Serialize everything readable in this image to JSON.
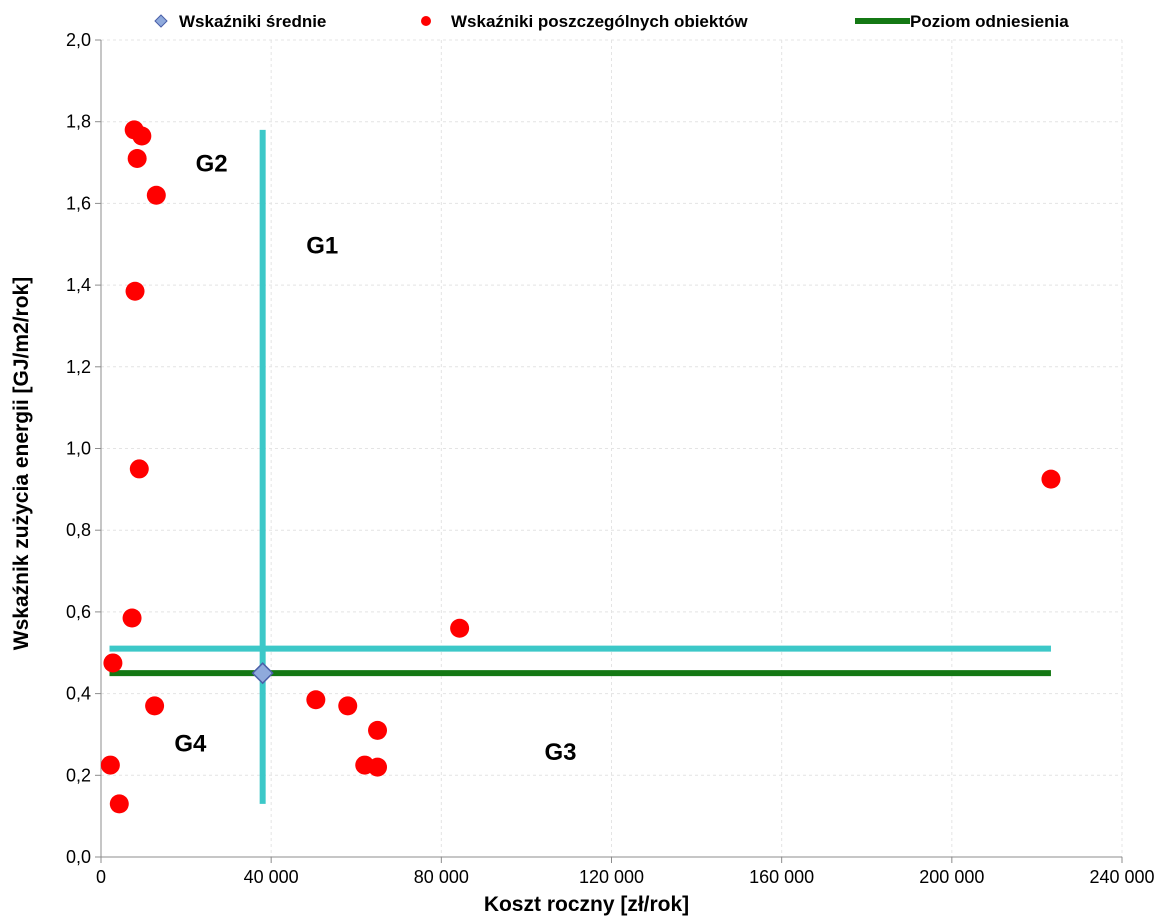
{
  "chart_data": {
    "type": "scatter",
    "xlabel": "Koszt roczny [zł/rok]",
    "ylabel": "Wskaźnik zużycia energii [GJ/m2/rok]",
    "xlim": [
      0,
      240000
    ],
    "ylim": [
      0,
      2.0
    ],
    "x_ticks": [
      0,
      40000,
      80000,
      120000,
      160000,
      200000,
      240000
    ],
    "x_tick_labels": [
      "0",
      "40 000",
      "80 000",
      "120 000",
      "160 000",
      "200 000",
      "240 000"
    ],
    "y_ticks": [
      0,
      0.2,
      0.4,
      0.6,
      0.8,
      1.0,
      1.2,
      1.4,
      1.6,
      1.8,
      2.0
    ],
    "y_tick_labels": [
      "0,0",
      "0,2",
      "0,4",
      "0,6",
      "0,8",
      "1,0",
      "1,2",
      "1,4",
      "1,6",
      "1,8",
      "2,0"
    ],
    "grid": true,
    "legend_position": "top",
    "series": [
      {
        "name": "Wskaźniki średnie",
        "marker": "diamond",
        "color": "#8FAADC",
        "stroke": "#4A5FA8",
        "points": [
          {
            "x": 38000,
            "y": 0.45
          }
        ]
      },
      {
        "name": "Wskaźniki poszczególnych obiektów",
        "marker": "circle",
        "color": "#FF0000",
        "points": [
          {
            "x": 7800,
            "y": 1.78
          },
          {
            "x": 9600,
            "y": 1.765
          },
          {
            "x": 8500,
            "y": 1.71
          },
          {
            "x": 13000,
            "y": 1.62
          },
          {
            "x": 8000,
            "y": 1.385
          },
          {
            "x": 9000,
            "y": 0.95
          },
          {
            "x": 7300,
            "y": 0.585
          },
          {
            "x": 2800,
            "y": 0.475
          },
          {
            "x": 12600,
            "y": 0.37
          },
          {
            "x": 2200,
            "y": 0.225
          },
          {
            "x": 4300,
            "y": 0.13
          },
          {
            "x": 50500,
            "y": 0.385
          },
          {
            "x": 58000,
            "y": 0.37
          },
          {
            "x": 65000,
            "y": 0.31
          },
          {
            "x": 62000,
            "y": 0.225
          },
          {
            "x": 65000,
            "y": 0.22
          },
          {
            "x": 84300,
            "y": 0.56
          },
          {
            "x": 223300,
            "y": 0.925
          }
        ]
      },
      {
        "name": "Poziom odniesienia",
        "type": "line",
        "color": "#147814",
        "points": [
          {
            "x": 2000,
            "y": 0.45
          },
          {
            "x": 223300,
            "y": 0.45
          }
        ]
      }
    ],
    "quadrant_lines": {
      "color": "#3CC8C8",
      "vertical": {
        "x": 38000,
        "y_from": 0.13,
        "y_to": 1.78
      },
      "horizontal": {
        "y": 0.51,
        "x_from": 2000,
        "x_to": 223300
      }
    },
    "region_labels": [
      {
        "text": "G1",
        "x": 52000,
        "y": 1.5
      },
      {
        "text": "G2",
        "x": 26000,
        "y": 1.7
      },
      {
        "text": "G3",
        "x": 108000,
        "y": 0.26
      },
      {
        "text": "G4",
        "x": 21000,
        "y": 0.28
      }
    ]
  }
}
